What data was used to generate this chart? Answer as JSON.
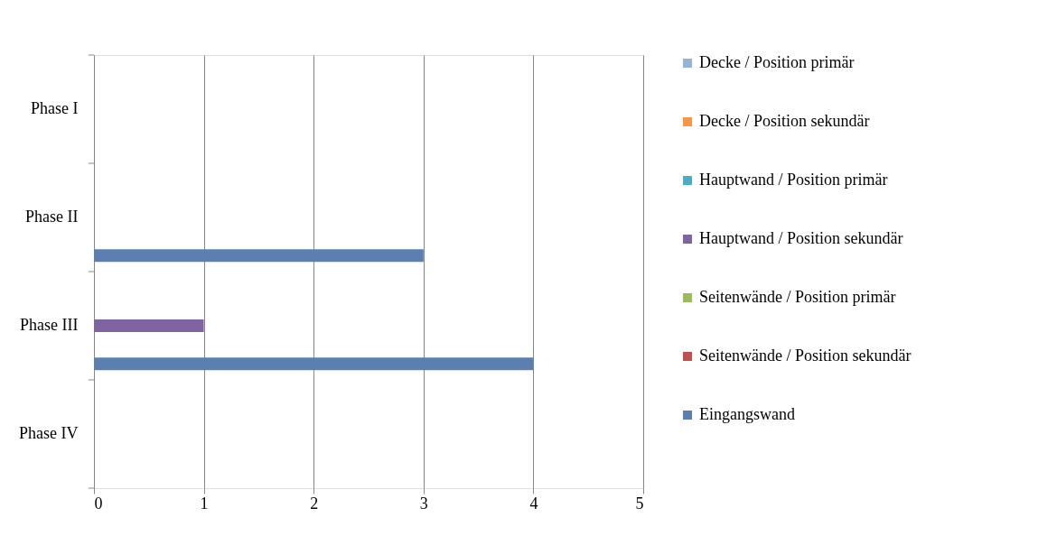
{
  "chart_data": {
    "type": "bar",
    "orientation": "horizontal",
    "categories": [
      "Phase I",
      "Phase II",
      "Phase III",
      "Phase IV"
    ],
    "series": [
      {
        "name": "Decke / Position primär",
        "color": "#95b3d7",
        "values": [
          0,
          0,
          0,
          0
        ]
      },
      {
        "name": "Decke / Position sekundär",
        "color": "#f79646",
        "values": [
          0,
          0,
          0,
          0
        ]
      },
      {
        "name": "Hauptwand / Position primär",
        "color": "#4bacc6",
        "values": [
          0,
          0,
          0,
          0
        ]
      },
      {
        "name": "Hauptwand / Position sekundär",
        "color": "#8064a2",
        "values": [
          0,
          0,
          1,
          0
        ]
      },
      {
        "name": "Seitenwände / Position primär",
        "color": "#9bbb59",
        "values": [
          0,
          0,
          0,
          0
        ]
      },
      {
        "name": "Seitenwände / Position sekundär",
        "color": "#c0504d",
        "values": [
          0,
          0,
          0,
          0
        ]
      },
      {
        "name": "Eingangswand",
        "color": "#5a7fb0",
        "values": [
          0,
          3,
          4,
          0
        ]
      }
    ],
    "xlim": [
      0,
      5
    ],
    "xticks": [
      0,
      1,
      2,
      3,
      4,
      5
    ],
    "grid": "x",
    "legend": "right"
  }
}
